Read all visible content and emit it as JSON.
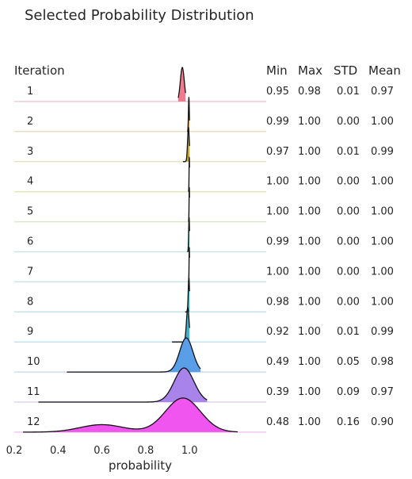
{
  "chart_data": {
    "type": "ridgeline",
    "title": "Selected Probability Distribution",
    "xlabel": "probability",
    "row_header": "Iteration",
    "stat_headers": [
      "Min",
      "Max",
      "STD",
      "Mean"
    ],
    "xlim": [
      0.2,
      1.35
    ],
    "x_ticks": [
      "0.2",
      "0.4",
      "0.6",
      "0.8",
      "1.0"
    ],
    "x_tick_values": [
      0.2,
      0.4,
      0.6,
      0.8,
      1.0
    ],
    "series": [
      {
        "name": "1",
        "min": "0.95",
        "max": "0.98",
        "std": "0.01",
        "mean": "0.97",
        "color": "#f07a90",
        "baseline": "#f7c9d4",
        "density": {
          "kind": "gauss",
          "mu": 0.967,
          "sigma": 0.009,
          "lo": 0.948,
          "hi": 0.982
        }
      },
      {
        "name": "2",
        "min": "0.99",
        "max": "1.00",
        "std": "0.00",
        "mean": "1.00",
        "color": "#e3a65a",
        "baseline": "#ecdcc0",
        "density": {
          "kind": "gauss",
          "mu": 0.997,
          "sigma": 0.002,
          "lo": 0.99,
          "hi": 1.0
        }
      },
      {
        "name": "3",
        "min": "0.97",
        "max": "1.00",
        "std": "0.01",
        "mean": "0.99",
        "color": "#c9a62a",
        "baseline": "#e8e2c4",
        "density": {
          "kind": "gauss",
          "mu": 0.995,
          "sigma": 0.004,
          "lo": 0.97,
          "hi": 1.0
        }
      },
      {
        "name": "4",
        "min": "1.00",
        "max": "1.00",
        "std": "0.00",
        "mean": "1.00",
        "color": "#a8b53c",
        "baseline": "#e4e6c6",
        "density": {
          "kind": "gauss",
          "mu": 0.999,
          "sigma": 0.0012,
          "lo": 0.995,
          "hi": 1.0
        }
      },
      {
        "name": "5",
        "min": "1.00",
        "max": "1.00",
        "std": "0.00",
        "mean": "1.00",
        "color": "#7fb84a",
        "baseline": "#dce6c8",
        "density": {
          "kind": "gauss",
          "mu": 0.999,
          "sigma": 0.0012,
          "lo": 0.995,
          "hi": 1.0
        }
      },
      {
        "name": "6",
        "min": "0.99",
        "max": "1.00",
        "std": "0.00",
        "mean": "1.00",
        "color": "#4fb6a0",
        "baseline": "#c9e6e0",
        "density": {
          "kind": "gauss",
          "mu": 0.998,
          "sigma": 0.002,
          "lo": 0.99,
          "hi": 1.0
        }
      },
      {
        "name": "7",
        "min": "1.00",
        "max": "1.00",
        "std": "0.00",
        "mean": "1.00",
        "color": "#44b2ac",
        "baseline": "#c6e5e3",
        "density": {
          "kind": "gauss",
          "mu": 0.999,
          "sigma": 0.0012,
          "lo": 0.995,
          "hi": 1.0
        }
      },
      {
        "name": "8",
        "min": "0.98",
        "max": "1.00",
        "std": "0.00",
        "mean": "1.00",
        "color": "#3fb0b8",
        "baseline": "#c6e4e8",
        "density": {
          "kind": "gauss",
          "mu": 0.997,
          "sigma": 0.003,
          "lo": 0.98,
          "hi": 1.0
        }
      },
      {
        "name": "9",
        "min": "0.92",
        "max": "1.00",
        "std": "0.01",
        "mean": "0.99",
        "color": "#46b0cc",
        "baseline": "#c6e2ec",
        "density": {
          "kind": "gauss",
          "mu": 0.992,
          "sigma": 0.006,
          "lo": 0.92,
          "hi": 1.0
        }
      },
      {
        "name": "10",
        "min": "0.49",
        "max": "1.00",
        "std": "0.05",
        "mean": "0.98",
        "color": "#5a9ee8",
        "baseline": "#cfdcf2",
        "density": {
          "kind": "gauss",
          "mu": 0.985,
          "sigma": 0.03,
          "lo": 0.44,
          "hi": 1.05
        }
      },
      {
        "name": "11",
        "min": "0.39",
        "max": "1.00",
        "std": "0.09",
        "mean": "0.97",
        "color": "#a884ea",
        "baseline": "#e0d4f2",
        "density": {
          "kind": "gauss",
          "mu": 0.975,
          "sigma": 0.045,
          "lo": 0.31,
          "hi": 1.08
        }
      },
      {
        "name": "12",
        "min": "0.48",
        "max": "1.00",
        "std": "0.16",
        "mean": "0.90",
        "color": "#f055f0",
        "baseline": "#f2c8f2",
        "density": {
          "kind": "mix",
          "components": [
            {
              "w": 0.18,
              "mu": 0.6,
              "sigma": 0.1
            },
            {
              "w": 0.82,
              "mu": 0.97,
              "sigma": 0.08
            }
          ],
          "lo": 0.24,
          "hi": 1.22
        }
      }
    ]
  }
}
